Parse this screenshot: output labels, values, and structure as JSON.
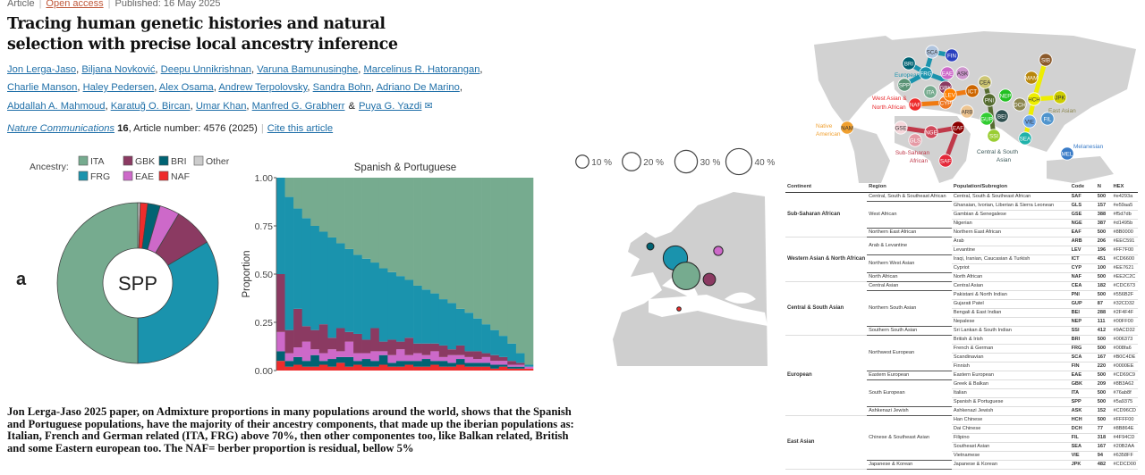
{
  "header": {
    "type": "Article",
    "access": "Open access",
    "published": "Published: 16 May 2025",
    "title": "Tracing human genetic histories and natural selection with precise local ancestry inference",
    "authors_line1": [
      "Jon Lerga-Jaso",
      "Biljana Novković",
      "Deepu Unnikrishnan",
      "Varuna Bamunusinghe",
      "Marcelinus R. Hatorangan"
    ],
    "authors_line2": [
      "Charlie Manson",
      "Haley Pedersen",
      "Alex Osama",
      "Andrew Terpolovsky",
      "Sandra Bohn",
      "Adriano De Marino"
    ],
    "authors_line3": [
      "Abdallah A. Mahmoud",
      "Karatuğ O. Bircan",
      "Umar Khan",
      "Manfred G. Grabherr"
    ],
    "last_author": "Puya G. Yazdi",
    "ampersand": "&",
    "journal": "Nature Communications",
    "volume": "16",
    "article_number": ", Article number: 4576 (2025)",
    "cite": "Cite this article"
  },
  "caption": "Jon Lerga-Jaso 2025 paper, on Admixture proportions in many populations around the world, shows that the Spanish and Portuguese populations, have the majority of their ancestry components, that made up the iberian populations as: Italian, French and German related (ITA, FRG) above 70%, then other componentes too, like Balkan related, British and some Eastern european too. The NAF= berber proportion is residual, bellow 5%",
  "colors": {
    "ITA": "#76ab8f",
    "FRG": "#1a93ad",
    "GBK": "#8b3a62",
    "EAE": "#cd69c9",
    "BRI": "#006373",
    "NAF": "#ee2c2c",
    "Other": "#cccccc"
  },
  "chart_data": [
    {
      "type": "pie",
      "panel_label": "a",
      "center_label": "SPP",
      "legend_title": "Ancestry:",
      "legend": [
        "ITA",
        "GBK",
        "BRI",
        "Other",
        "FRG",
        "EAE",
        "NAF"
      ],
      "slices": [
        {
          "label": "Other",
          "value": 0.5
        },
        {
          "label": "NAF",
          "value": 1.5
        },
        {
          "label": "BRI",
          "value": 2.5
        },
        {
          "label": "EAE",
          "value": 4
        },
        {
          "label": "GBK",
          "value": 8
        },
        {
          "label": "FRG",
          "value": 33.5
        },
        {
          "label": "ITA",
          "value": 50
        }
      ]
    },
    {
      "type": "bar",
      "stacked": true,
      "title": "Spanish & Portuguese",
      "ylabel": "Proportion",
      "ylim": [
        0,
        1
      ],
      "yticks": [
        "0.00",
        "0.25",
        "0.50",
        "0.75",
        "1.00"
      ],
      "series": [
        {
          "name": "NAF",
          "values": [
            0.05,
            0.02,
            0.03,
            0.02,
            0.02,
            0.03,
            0.02,
            0.04,
            0.02,
            0.03,
            0.02,
            0.02,
            0.03,
            0.02,
            0.02,
            0.03,
            0.02,
            0.02,
            0.03,
            0.02,
            0.02,
            0.03,
            0.02,
            0.02,
            0.02,
            0.01,
            0.02,
            0.01,
            0.01,
            0.01
          ]
        },
        {
          "name": "BRI",
          "values": [
            0.05,
            0.03,
            0.04,
            0.03,
            0.06,
            0.02,
            0.04,
            0.03,
            0.05,
            0.02,
            0.04,
            0.03,
            0.05,
            0.02,
            0.03,
            0.02,
            0.03,
            0.04,
            0.02,
            0.03,
            0.02,
            0.03,
            0.02,
            0.02,
            0.02,
            0.02,
            0.01,
            0.01,
            0.01,
            0.0
          ]
        },
        {
          "name": "EAE",
          "values": [
            0.1,
            0.04,
            0.05,
            0.1,
            0.03,
            0.04,
            0.05,
            0.03,
            0.08,
            0.04,
            0.03,
            0.05,
            0.02,
            0.04,
            0.06,
            0.03,
            0.04,
            0.02,
            0.05,
            0.02,
            0.04,
            0.02,
            0.03,
            0.02,
            0.03,
            0.02,
            0.02,
            0.01,
            0.01,
            0.01
          ]
        },
        {
          "name": "GBK",
          "values": [
            0.3,
            0.12,
            0.2,
            0.08,
            0.1,
            0.15,
            0.06,
            0.12,
            0.05,
            0.1,
            0.07,
            0.12,
            0.05,
            0.08,
            0.04,
            0.09,
            0.05,
            0.06,
            0.04,
            0.06,
            0.03,
            0.05,
            0.03,
            0.04,
            0.02,
            0.03,
            0.02,
            0.02,
            0.01,
            0.0
          ]
        },
        {
          "name": "FRG",
          "values": [
            0.5,
            0.69,
            0.52,
            0.56,
            0.54,
            0.48,
            0.52,
            0.44,
            0.43,
            0.41,
            0.42,
            0.34,
            0.38,
            0.35,
            0.34,
            0.3,
            0.3,
            0.28,
            0.26,
            0.24,
            0.24,
            0.19,
            0.2,
            0.17,
            0.15,
            0.13,
            0.11,
            0.09,
            0.05,
            0.01
          ]
        },
        {
          "name": "ITA",
          "values": [
            0.0,
            0.1,
            0.16,
            0.21,
            0.25,
            0.28,
            0.31,
            0.34,
            0.37,
            0.4,
            0.42,
            0.44,
            0.47,
            0.49,
            0.51,
            0.53,
            0.56,
            0.58,
            0.6,
            0.63,
            0.65,
            0.68,
            0.7,
            0.73,
            0.76,
            0.79,
            0.82,
            0.86,
            0.91,
            0.97
          ]
        }
      ]
    },
    {
      "type": "bubble-map",
      "size_legend": [
        {
          "label": "10 %",
          "value": 10
        },
        {
          "label": "20 %",
          "value": 20
        },
        {
          "label": "30 %",
          "value": 30
        },
        {
          "label": "40 %",
          "value": 40
        }
      ],
      "bubbles": [
        {
          "code": "BRI",
          "value": 3
        },
        {
          "code": "FRG",
          "value": 35
        },
        {
          "code": "ITA",
          "value": 45
        },
        {
          "code": "GBK",
          "value": 9
        },
        {
          "code": "EAE",
          "value": 5
        },
        {
          "code": "NAF",
          "value": 1
        }
      ]
    }
  ],
  "world_map": {
    "groups": [
      {
        "label": "European",
        "color": "#1a93ad"
      },
      {
        "label": "West Asian &",
        "color": "#e8282c"
      },
      {
        "label": "North African",
        "color": "#e8282c"
      },
      {
        "label": "Native",
        "color": "#f0a030"
      },
      {
        "label": "American",
        "color": "#f0a030"
      },
      {
        "label": "Sub-Saharan",
        "color": "#c0394a"
      },
      {
        "label": "African",
        "color": "#c0394a"
      },
      {
        "label": "Central & South",
        "color": "#3d5a5a"
      },
      {
        "label": "Asian",
        "color": "#3d5a5a"
      },
      {
        "label": "East Asian",
        "color": "#8b864e"
      },
      {
        "label": "Melanesian",
        "color": "#3a7cc8"
      }
    ],
    "nodes": [
      {
        "code": "SCA",
        "color": "#b0c4de"
      },
      {
        "code": "FIN",
        "color": "#2a3fbf"
      },
      {
        "code": "BRI",
        "color": "#006373"
      },
      {
        "code": "FRG",
        "color": "#1a93ad"
      },
      {
        "code": "EAE",
        "color": "#cd69c9"
      },
      {
        "code": "ASK",
        "color": "#cd96cd"
      },
      {
        "code": "SPP",
        "color": "#5a9375"
      },
      {
        "code": "ITA",
        "color": "#76ab8f"
      },
      {
        "code": "GBK",
        "color": "#8b3a62"
      },
      {
        "code": "NAF",
        "color": "#ee2c2c"
      },
      {
        "code": "CYP",
        "color": "#ee7621"
      },
      {
        "code": "LEV",
        "color": "#ff7f00"
      },
      {
        "code": "ICT",
        "color": "#cd6600"
      },
      {
        "code": "ARB",
        "color": "#eec591"
      },
      {
        "code": "CEA",
        "color": "#cdc673"
      },
      {
        "code": "PNI",
        "color": "#556b2f"
      },
      {
        "code": "NEP",
        "color": "#22c022"
      },
      {
        "code": "GUP",
        "color": "#32cd32"
      },
      {
        "code": "BEI",
        "color": "#2f4f4f"
      },
      {
        "code": "SSI",
        "color": "#9acd32"
      },
      {
        "code": "SIB",
        "color": "#8b5a2b"
      },
      {
        "code": "MAM",
        "color": "#b8860b"
      },
      {
        "code": "HCH",
        "color": "#eeee00"
      },
      {
        "code": "DCH",
        "color": "#8b864e"
      },
      {
        "code": "JPK",
        "color": "#cdcd00"
      },
      {
        "code": "VIE",
        "color": "#6fa8e8"
      },
      {
        "code": "FIL",
        "color": "#4f94cd"
      },
      {
        "code": "SEA",
        "color": "#20b2aa"
      },
      {
        "code": "MEL",
        "color": "#3a7cc8"
      },
      {
        "code": "NAM",
        "color": "#f0a030"
      },
      {
        "code": "GSE",
        "color": "#f5d7db"
      },
      {
        "code": "GLS",
        "color": "#e59aa5"
      },
      {
        "code": "NGE",
        "color": "#d1495b"
      },
      {
        "code": "EAF",
        "color": "#8b0000"
      },
      {
        "code": "SAF",
        "color": "#e4293a"
      }
    ]
  },
  "table": {
    "headers": [
      "Continent",
      "Region",
      "Population/Subregion",
      "Code",
      "N",
      "HEX"
    ],
    "groups": [
      {
        "continent": "Sub-Saharan African",
        "regions": [
          {
            "region": "Central, South & Southeast African",
            "rows": [
              {
                "pop": "Central, South & Southeast African",
                "code": "SAF",
                "n": "500",
                "hex": "#e4293a"
              }
            ]
          },
          {
            "region": "West African",
            "rows": [
              {
                "pop": "Ghanaian, Ivorian, Liberian & Sierra Leonean",
                "code": "GLS",
                "n": "157",
                "hex": "#e59aa5"
              },
              {
                "pop": "Gambian & Senegalese",
                "code": "GSE",
                "n": "388",
                "hex": "#f5d7db"
              },
              {
                "pop": "Nigerian",
                "code": "NGE",
                "n": "387",
                "hex": "#d1495b"
              }
            ]
          },
          {
            "region": "Northern East African",
            "rows": [
              {
                "pop": "Northern East African",
                "code": "EAF",
                "n": "500",
                "hex": "#8B0000"
              }
            ]
          }
        ]
      },
      {
        "continent": "Western Asian & North African",
        "regions": [
          {
            "region": "Arab & Levantine",
            "rows": [
              {
                "pop": "Arab",
                "code": "ARB",
                "n": "206",
                "hex": "#EEC591"
              },
              {
                "pop": "Levantine",
                "code": "LEV",
                "n": "196",
                "hex": "#FF7F00"
              }
            ]
          },
          {
            "region": "Northern West Asian",
            "rows": [
              {
                "pop": "Iraqi, Iranian, Caucasian & Turkish",
                "code": "ICT",
                "n": "451",
                "hex": "#CD6600"
              },
              {
                "pop": "Cypriot",
                "code": "CYP",
                "n": "100",
                "hex": "#EE7621"
              }
            ]
          },
          {
            "region": "North African",
            "rows": [
              {
                "pop": "North African",
                "code": "NAF",
                "n": "500",
                "hex": "#EE2C2C"
              }
            ]
          }
        ]
      },
      {
        "continent": "Central & South Asian",
        "regions": [
          {
            "region": "Central Asian",
            "rows": [
              {
                "pop": "Central Asian",
                "code": "CEA",
                "n": "182",
                "hex": "#CDC673"
              }
            ]
          },
          {
            "region": "Northern South Asian",
            "rows": [
              {
                "pop": "Pakistani & North Indian",
                "code": "PNI",
                "n": "500",
                "hex": "#556B2F"
              },
              {
                "pop": "Gujarati Patel",
                "code": "GUP",
                "n": "87",
                "hex": "#32CD32"
              },
              {
                "pop": "Bengali & East Indian",
                "code": "BEI",
                "n": "288",
                "hex": "#2F4F4F"
              },
              {
                "pop": "Nepalese",
                "code": "NEP",
                "n": "111",
                "hex": "#00FF00"
              }
            ]
          },
          {
            "region": "Southern South Asian",
            "rows": [
              {
                "pop": "Sri Lankan & South Indian",
                "code": "SSI",
                "n": "412",
                "hex": "#9ACD32"
              }
            ]
          }
        ]
      },
      {
        "continent": "European",
        "regions": [
          {
            "region": "Northwest European",
            "rows": [
              {
                "pop": "British & Irish",
                "code": "BRI",
                "n": "500",
                "hex": "#006373"
              },
              {
                "pop": "French & German",
                "code": "FRG",
                "n": "500",
                "hex": "#008fa6"
              },
              {
                "pop": "Scandinavian",
                "code": "SCA",
                "n": "167",
                "hex": "#B0C4DE"
              },
              {
                "pop": "Finnish",
                "code": "FIN",
                "n": "220",
                "hex": "#0000EE"
              }
            ]
          },
          {
            "region": "Eastern European",
            "rows": [
              {
                "pop": "Eastern European",
                "code": "EAE",
                "n": "500",
                "hex": "#CD69C9"
              }
            ]
          },
          {
            "region": "South European",
            "rows": [
              {
                "pop": "Greek & Balkan",
                "code": "GBK",
                "n": "209",
                "hex": "#8B3A62"
              },
              {
                "pop": "Italian",
                "code": "ITA",
                "n": "500",
                "hex": "#76ab8f"
              },
              {
                "pop": "Spanish & Portuguese",
                "code": "SPP",
                "n": "500",
                "hex": "#5a9375"
              }
            ]
          },
          {
            "region": "Ashkenazi Jewish",
            "rows": [
              {
                "pop": "Ashkenazi Jewish",
                "code": "ASK",
                "n": "152",
                "hex": "#CD96CD"
              }
            ]
          }
        ]
      },
      {
        "continent": "East Asian",
        "regions": [
          {
            "region": "Chinese & Southeast Asian",
            "rows": [
              {
                "pop": "Han Chinese",
                "code": "HCH",
                "n": "500",
                "hex": "#FFFF00"
              },
              {
                "pop": "Dai Chinese",
                "code": "DCH",
                "n": "77",
                "hex": "#8B864E"
              },
              {
                "pop": "Filipino",
                "code": "FIL",
                "n": "318",
                "hex": "#4F94CD"
              },
              {
                "pop": "Southeast Asian",
                "code": "SEA",
                "n": "167",
                "hex": "#20B2AA"
              },
              {
                "pop": "Vietnamese",
                "code": "VIE",
                "n": "94",
                "hex": "#6358FF"
              }
            ]
          },
          {
            "region": "Japanese & Korean",
            "rows": [
              {
                "pop": "Japanese & Korean",
                "code": "JPK",
                "n": "482",
                "hex": "#CDCD00"
              }
            ]
          }
        ]
      }
    ]
  }
}
